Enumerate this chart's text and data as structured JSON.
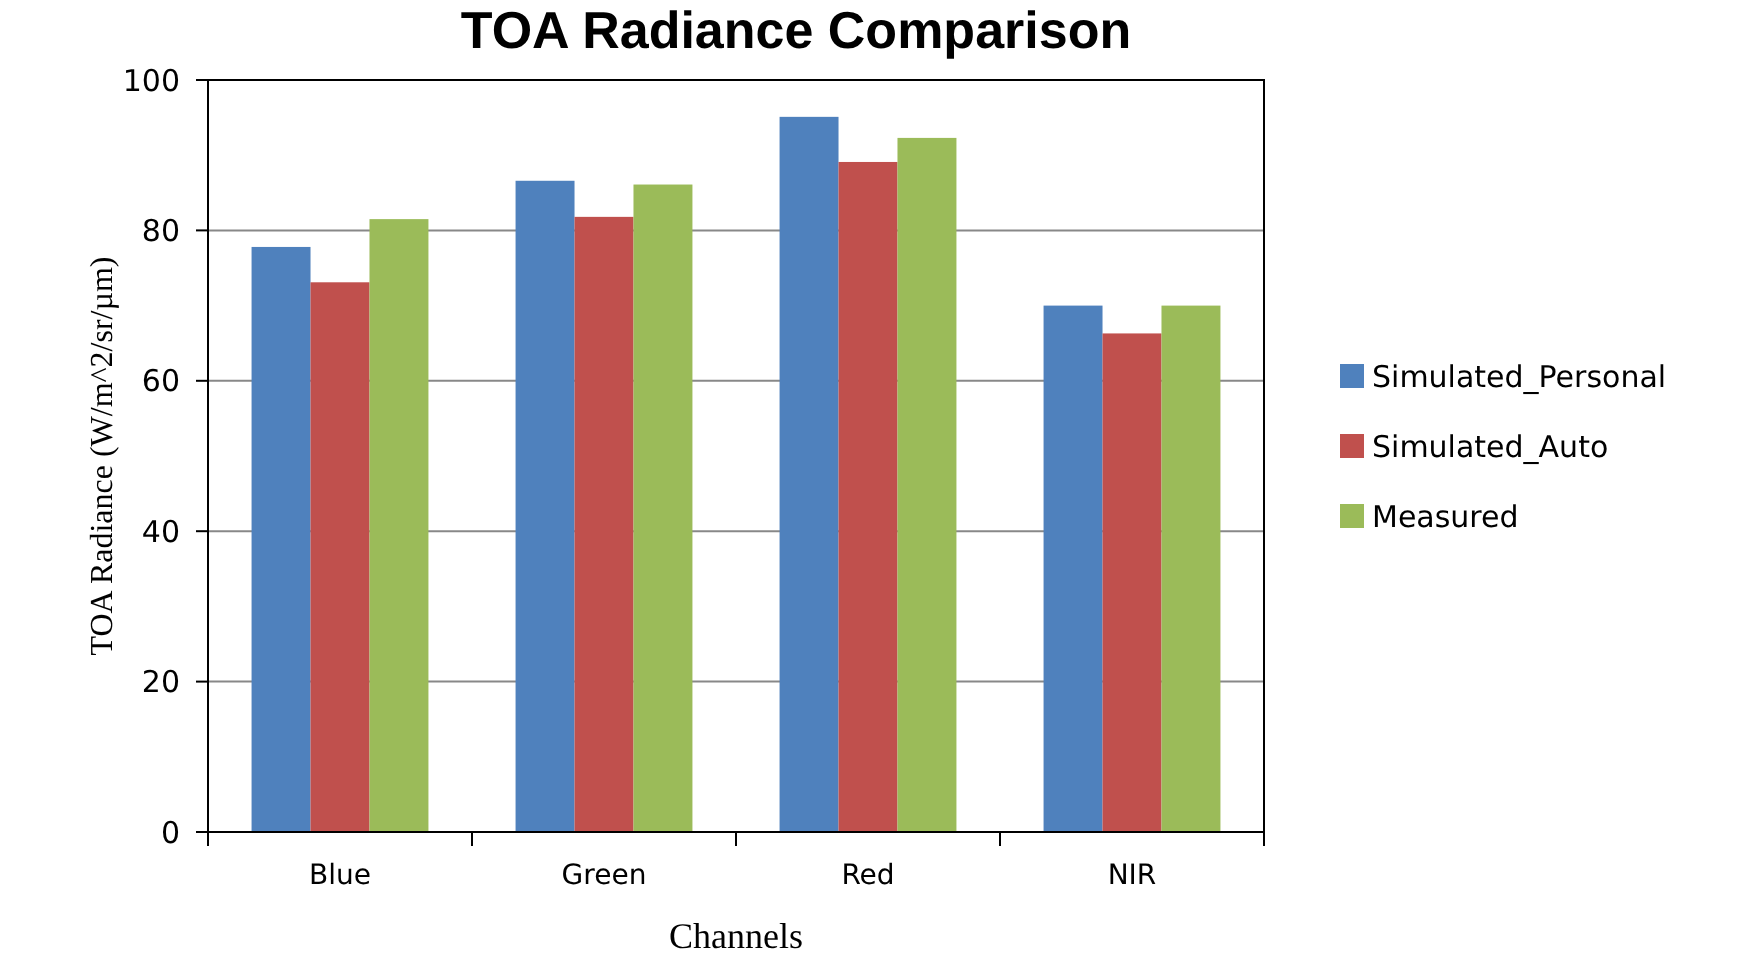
{
  "chart_data": {
    "type": "bar",
    "title": "TOA Radiance Comparison",
    "xlabel": "Channels",
    "ylabel": "TOA Radiance (W/m^2/sr/µm)",
    "categories": [
      "Blue",
      "Green",
      "Red",
      "NIR"
    ],
    "series": [
      {
        "name": "Simulated_Personal",
        "color": "#4f81bd",
        "values": [
          77.8,
          86.6,
          95.1,
          70.0
        ]
      },
      {
        "name": "Simulated_Auto",
        "color": "#c0504d",
        "values": [
          73.1,
          81.8,
          89.1,
          66.3
        ]
      },
      {
        "name": "Measured",
        "color": "#9bbb59",
        "values": [
          81.5,
          86.1,
          92.3,
          70.0
        ]
      }
    ],
    "ylim": [
      0,
      100
    ],
    "yticks": [
      0,
      20,
      40,
      60,
      80,
      100
    ],
    "grid": "y",
    "legend": "right"
  }
}
